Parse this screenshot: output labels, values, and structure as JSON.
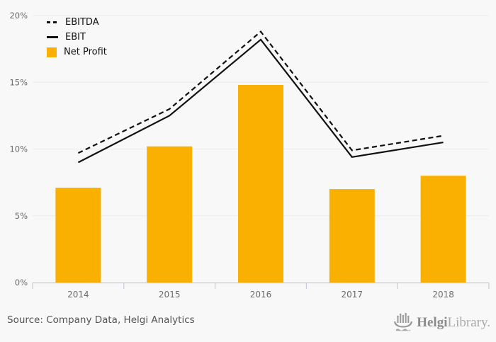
{
  "chart_data": {
    "type": "bar",
    "categories": [
      "2014",
      "2015",
      "2016",
      "2017",
      "2018"
    ],
    "series": [
      {
        "name": "EBITDA",
        "kind": "line",
        "style": "dashed",
        "color": "#111111",
        "values": [
          9.7,
          13.0,
          18.8,
          9.9,
          11.0
        ]
      },
      {
        "name": "EBIT",
        "kind": "line",
        "style": "solid",
        "color": "#111111",
        "values": [
          9.0,
          12.5,
          18.2,
          9.4,
          10.5
        ]
      },
      {
        "name": "Net Profit",
        "kind": "bar",
        "color": "#F9B000",
        "values": [
          7.1,
          10.2,
          14.8,
          7.0,
          8.0
        ]
      }
    ],
    "title": "",
    "xlabel": "",
    "ylabel": "",
    "ylim": [
      0,
      20
    ],
    "yticks": [
      0,
      5,
      10,
      15,
      20
    ],
    "ytick_labels": [
      "0%",
      "5%",
      "10%",
      "15%",
      "20%"
    ],
    "grid": true,
    "legend_position": "top-left"
  },
  "colors": {
    "accent": "#F9B000",
    "line": "#111111",
    "grid": "#ececec",
    "axis": "#c5cbda",
    "tick_text": "#6b6b6b",
    "background": "#f8f8f8"
  },
  "footer": {
    "source_text": "Source: Company Data, Helgi Analytics",
    "logo": {
      "brand_bold": "Helgi",
      "brand_light": "Library.",
      "icon": "ship-bar-chart-icon"
    }
  }
}
